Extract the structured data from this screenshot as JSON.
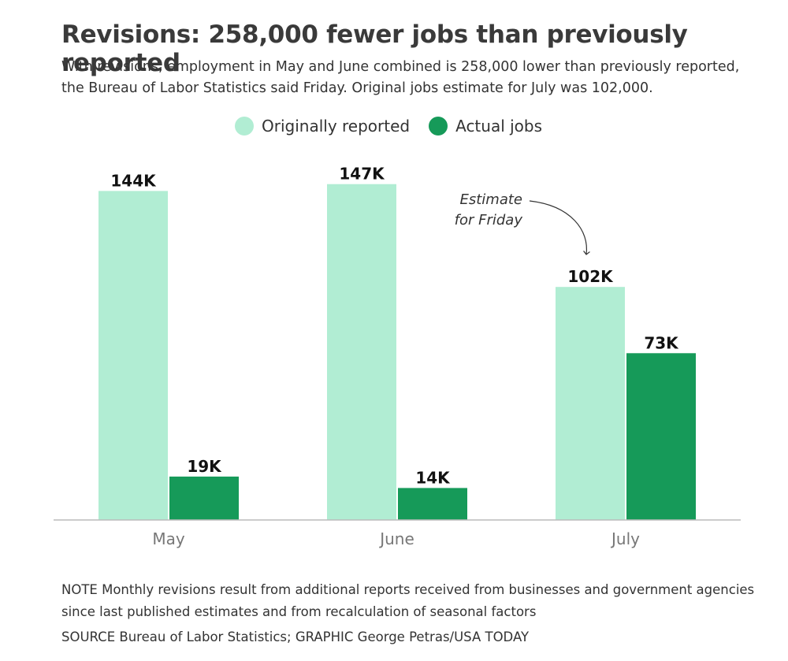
{
  "title": "Revisions: 258,000 fewer jobs than previously reported",
  "subtitle": "With revisions, employment in May and June combined is 258,000 lower than previously reported, the Bureau of Labor Statistics said Friday. Original jobs estimate for July was 102,000.",
  "legend": {
    "items": [
      {
        "label": "Originally reported",
        "color": "#b1edd3"
      },
      {
        "label": "Actual jobs",
        "color": "#169a59"
      }
    ]
  },
  "annotation": {
    "line1": "Estimate",
    "line2": "for Friday"
  },
  "chart_data": {
    "type": "bar",
    "categories": [
      "May",
      "June",
      "July"
    ],
    "series": [
      {
        "name": "Originally reported",
        "values": [
          144,
          147,
          102
        ],
        "labels": [
          "144K",
          "147K",
          "102K"
        ],
        "color": "#b1edd3"
      },
      {
        "name": "Actual jobs",
        "values": [
          19,
          14,
          73
        ],
        "labels": [
          "19K",
          "14K",
          "73K"
        ],
        "color": "#169a59"
      }
    ],
    "ylim": [
      0,
      150
    ],
    "grid": false,
    "legend": "top-center"
  },
  "note": "NOTE Monthly revisions result from additional reports received from businesses and government agencies since last published estimates and from recalculation of seasonal factors",
  "source": "SOURCE Bureau of Labor Statistics; GRAPHIC George Petras/USA TODAY"
}
